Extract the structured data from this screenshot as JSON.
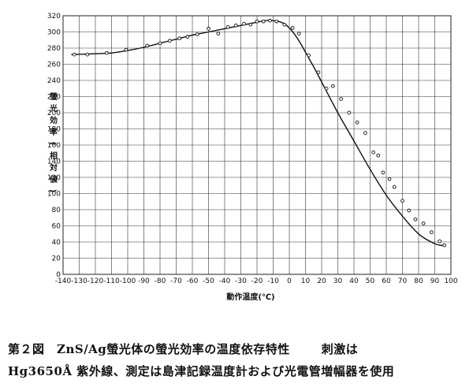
{
  "chart_data": {
    "type": "line",
    "xlabel": "動作温度(℃)",
    "ylabel": "螢光効率(相対値)",
    "xlim": [
      -140,
      100
    ],
    "ylim": [
      0,
      320
    ],
    "xticks": [
      -140,
      -130,
      -120,
      -110,
      -100,
      -90,
      -80,
      -70,
      -60,
      -50,
      -40,
      -30,
      -20,
      -10,
      0,
      10,
      20,
      30,
      40,
      50,
      60,
      70,
      80,
      90,
      100
    ],
    "yticks": [
      0,
      20,
      40,
      60,
      80,
      100,
      120,
      140,
      160,
      180,
      200,
      220,
      240,
      260,
      280,
      300,
      320
    ],
    "grid": true,
    "series": [
      {
        "kind": "curve",
        "x": [
          -135,
          -120,
          -110,
          -100,
          -90,
          -80,
          -70,
          -60,
          -50,
          -40,
          -30,
          -20,
          -15,
          -10,
          -5,
          0,
          5,
          10,
          15,
          20,
          30,
          40,
          50,
          60,
          70,
          80,
          90,
          97
        ],
        "y": [
          272,
          273,
          274,
          277,
          281,
          286,
          291,
          296,
          300,
          304,
          308,
          312,
          314,
          314,
          312,
          305,
          292,
          275,
          257,
          238,
          200,
          165,
          130,
          98,
          72,
          50,
          38,
          35
        ]
      },
      {
        "kind": "points",
        "x": [
          -133,
          -125,
          -113,
          -101,
          -88,
          -80,
          -74,
          -68,
          -63,
          -57,
          -50,
          -44,
          -38,
          -33,
          -28,
          -24,
          -20,
          -16,
          -12,
          -8,
          -3,
          2,
          6,
          12,
          18,
          23,
          27,
          32,
          37,
          42,
          47,
          52,
          55,
          58,
          62,
          65,
          70,
          74,
          78,
          83,
          88,
          93,
          96
        ],
        "y": [
          272,
          272,
          274,
          278,
          283,
          286,
          289,
          292,
          294,
          297,
          304,
          298,
          306,
          308,
          310,
          309,
          313,
          313,
          314,
          313,
          309,
          305,
          298,
          271,
          250,
          230,
          233,
          217,
          200,
          188,
          175,
          151,
          147,
          126,
          118,
          108,
          91,
          79,
          68,
          63,
          52,
          41,
          36
        ]
      }
    ]
  },
  "caption": {
    "line1_main": "第２図　ZnS/Ag螢光体の螢光効率の温度依存特性",
    "line1_right": "刺激は",
    "line2": "Hg3650Å 紫外線、測定は島津記録温度計および光電管増幅器を使用"
  }
}
